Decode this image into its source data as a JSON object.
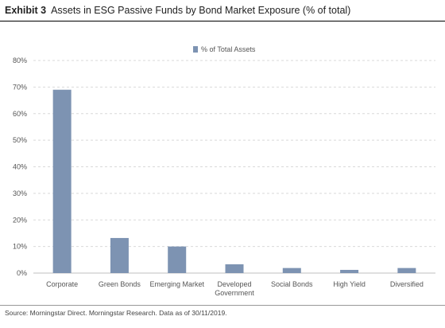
{
  "header": {
    "exhibit_label": "Exhibit 3",
    "title": "Assets in ESG Passive Funds by Bond Market Exposure (% of total)"
  },
  "footer": {
    "source": "Source: Morningstar Direct. Morningstar Research. Data as of 30/11/2019."
  },
  "chart_data": {
    "type": "bar",
    "categories": [
      "Corporate",
      "Green Bonds",
      "Emerging Market",
      "Developed Government",
      "Social Bonds",
      "High Yield",
      "Diversified"
    ],
    "category_label_lines": [
      [
        "Corporate"
      ],
      [
        "Green Bonds"
      ],
      [
        "Emerging Market"
      ],
      [
        "Developed",
        "Government"
      ],
      [
        "Social Bonds"
      ],
      [
        "High Yield"
      ],
      [
        "Diversified"
      ]
    ],
    "series": [
      {
        "name": "% of Total Assets",
        "values": [
          69,
          13.2,
          10,
          3.3,
          1.9,
          1.2,
          1.9
        ],
        "color": "#7d93b2"
      }
    ],
    "y_ticks": [
      "0%",
      "10%",
      "20%",
      "30%",
      "40%",
      "50%",
      "60%",
      "70%",
      "80%"
    ],
    "ylim": [
      0,
      80
    ],
    "grid": true,
    "legend_position": "top-center"
  },
  "colors": {
    "bar": "#7d93b2",
    "grid": "#d9d9d9",
    "text": "#555555"
  }
}
